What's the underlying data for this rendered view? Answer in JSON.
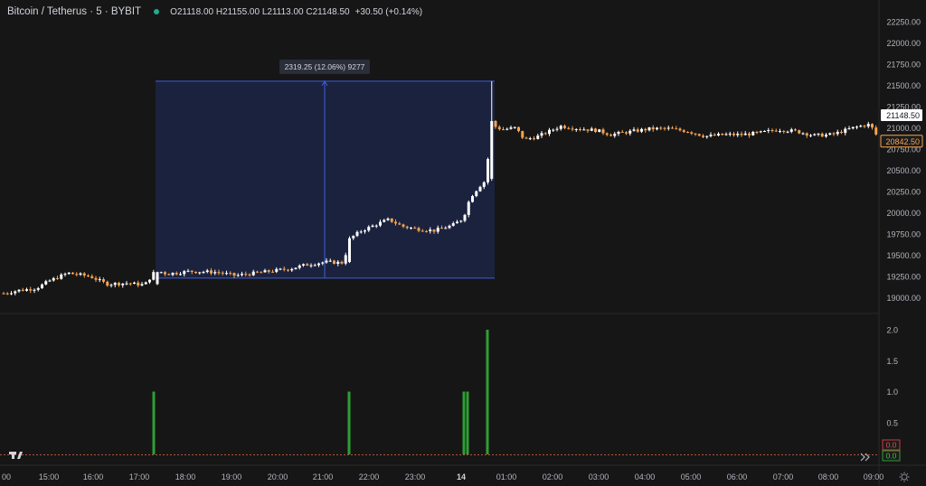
{
  "header": {
    "symbol": "Bitcoin / Tetherus · 5 · BYBIT",
    "ohlc": "O21118.00 H21155.00 L21113.00 C21148.50",
    "change": "+30.50 (+0.14%)"
  },
  "price_axis": {
    "ticks": [
      "22250.00",
      "22000.00",
      "21750.00",
      "21500.00",
      "21250.00",
      "21000.00",
      "20750.00",
      "20500.00",
      "20250.00",
      "20000.00",
      "19750.00",
      "19500.00",
      "19250.00",
      "19000.00"
    ],
    "current_price": "21148.50",
    "ma_price": "20842.50"
  },
  "indicator_axis": {
    "ticks": [
      "2.0",
      "1.5",
      "1.0",
      "0.5"
    ],
    "badge_red": "0.0",
    "badge_green": "0.0"
  },
  "time_axis": {
    "ticks": [
      "00",
      "15:00",
      "16:00",
      "17:00",
      "18:00",
      "19:00",
      "20:00",
      "21:00",
      "22:00",
      "23:00",
      "14",
      "01:00",
      "02:00",
      "03:00",
      "04:00",
      "05:00",
      "06:00",
      "07:00",
      "08:00",
      "09:00"
    ]
  },
  "measure": {
    "label": "2319.25 (12.06%) 9277"
  },
  "colors": {
    "up": "#ffffff",
    "down": "#f7a350",
    "volume": "#2e9e34",
    "measure_fill": "#1c2442",
    "measure_border": "#3d5ddb",
    "badge_price": "#f7a350"
  },
  "chart_data": {
    "type": "candlestick",
    "price_range": [
      18900,
      22300
    ],
    "indicator_range": [
      0,
      2.1
    ],
    "indicator_bars": [
      {
        "time": "17:05",
        "value": 1.0
      },
      {
        "time": "21:35",
        "value": 1.0
      },
      {
        "time": "00:00",
        "value": 1.0
      },
      {
        "time": "00:05",
        "value": 1.0
      },
      {
        "time": "00:30",
        "value": 2.0
      }
    ],
    "measure_range": {
      "from_time": "17:05",
      "to_time": "00:45",
      "low": 19230,
      "high": 21549
    }
  }
}
